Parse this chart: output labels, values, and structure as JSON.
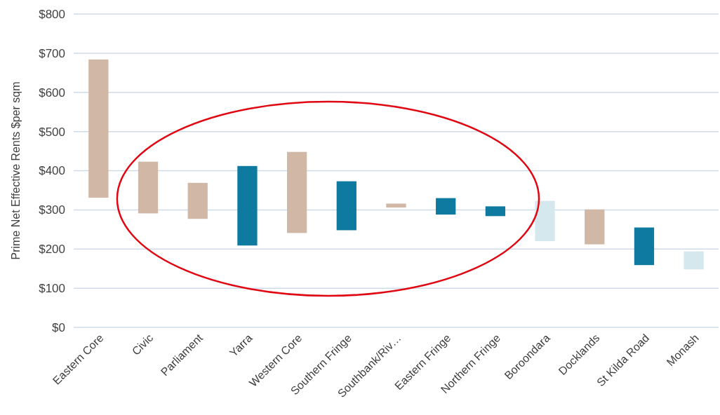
{
  "chart_data": {
    "type": "bar",
    "ylabel": "Prime Net Effective Rents $per sqm",
    "categories": [
      "Eastern Core",
      "Civic",
      "Parliament",
      "Yarra",
      "Western Core",
      "Southern Fringe",
      "Southbank/Riv…",
      "Eastern Fringe",
      "Northern Fringe",
      "Boroondara",
      "Docklands",
      "St Kilda Road",
      "Monash"
    ],
    "base": [
      331,
      291,
      277,
      209,
      241,
      248,
      306,
      288,
      284,
      220,
      212,
      159,
      148
    ],
    "values": [
      353,
      132,
      92,
      203,
      207,
      125,
      10,
      42,
      25,
      103,
      89,
      96,
      46
    ],
    "colors": [
      "#d1b7a5",
      "#d1b7a5",
      "#d1b7a5",
      "#0e7aa0",
      "#d1b7a5",
      "#0e7aa0",
      "#d1b7a5",
      "#0e7aa0",
      "#0e7aa0",
      "#d5e8ee",
      "#d1b7a5",
      "#0e7aa0",
      "#d5e8ee"
    ],
    "ylim": [
      0,
      800
    ],
    "yticks": [
      {
        "value": 0,
        "label": "$0"
      },
      {
        "value": 100,
        "label": "$100"
      },
      {
        "value": 200,
        "label": "$200"
      },
      {
        "value": 300,
        "label": "$300"
      },
      {
        "value": 400,
        "label": "$400"
      },
      {
        "value": 500,
        "label": "$500"
      },
      {
        "value": 600,
        "label": "$600"
      },
      {
        "value": 700,
        "label": "$700"
      },
      {
        "value": 800,
        "label": "$800"
      }
    ],
    "grid": "y"
  }
}
